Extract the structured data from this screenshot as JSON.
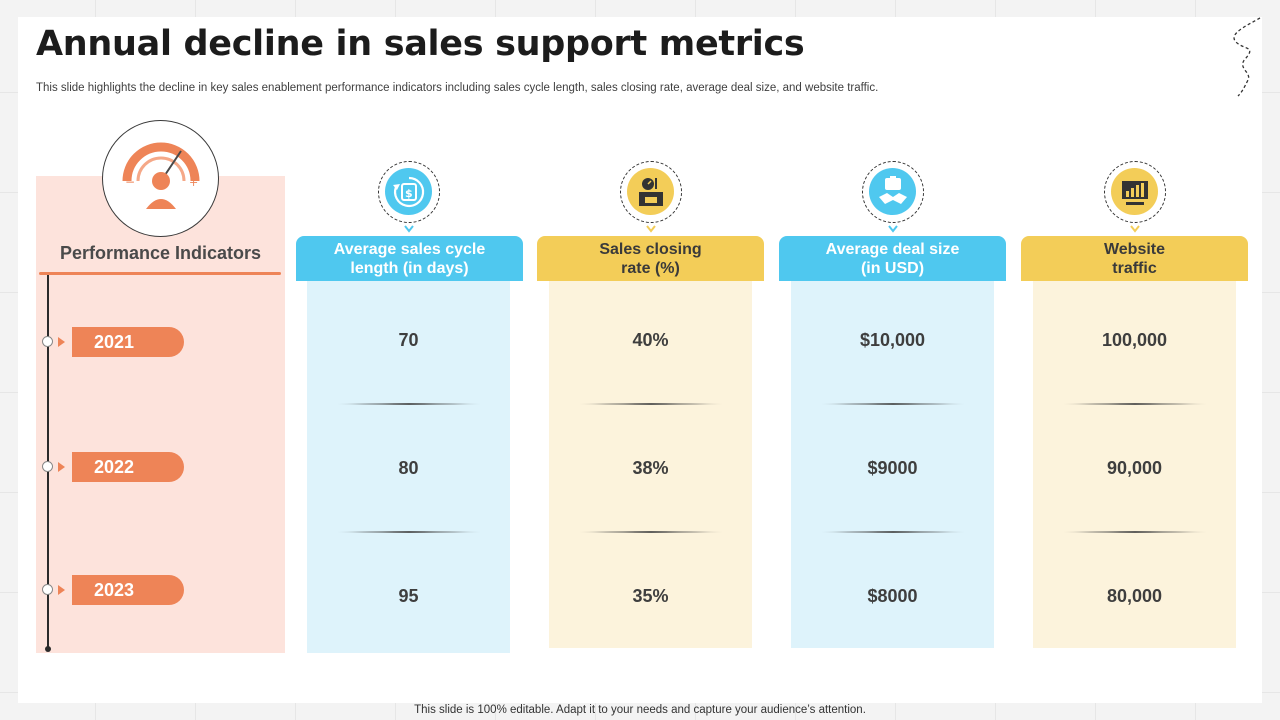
{
  "title": "Annual decline in sales support metrics",
  "subtitle": "This slide highlights the decline in key sales enablement performance indicators including sales cycle length, sales closing rate, average deal size, and website traffic.",
  "performance": {
    "label": "Performance Indicators",
    "icon": "speedometer-person-icon",
    "years": [
      "2021",
      "2022",
      "2023"
    ]
  },
  "columns": [
    {
      "header_line1": "Average sales cycle",
      "header_line2": "length (in days)",
      "icon": "money-cycle-icon",
      "values": [
        "70",
        "80",
        "95"
      ],
      "header_color": "#4fc8ef",
      "body_color": "#def3fb"
    },
    {
      "header_line1": "Sales closing",
      "header_line2": "rate (%)",
      "icon": "shop-closing-icon",
      "values": [
        "40%",
        "38%",
        "35%"
      ],
      "header_color": "#f3cd58",
      "body_color": "#fcf3dc"
    },
    {
      "header_line1": "Average deal size",
      "header_line2": "(in USD)",
      "icon": "handshake-deal-icon",
      "values": [
        "$10,000",
        "$9000",
        "$8000"
      ],
      "header_color": "#4fc8ef",
      "body_color": "#def3fb"
    },
    {
      "header_line1": "Website",
      "header_line2": "traffic",
      "icon": "presentation-chart-icon",
      "values": [
        "100,000",
        "90,000",
        "80,000"
      ],
      "header_color": "#f3cd58",
      "body_color": "#fcf3dc"
    }
  ],
  "footer": "This slide is 100% editable. Adapt it to your needs and capture your audience’s attention."
}
